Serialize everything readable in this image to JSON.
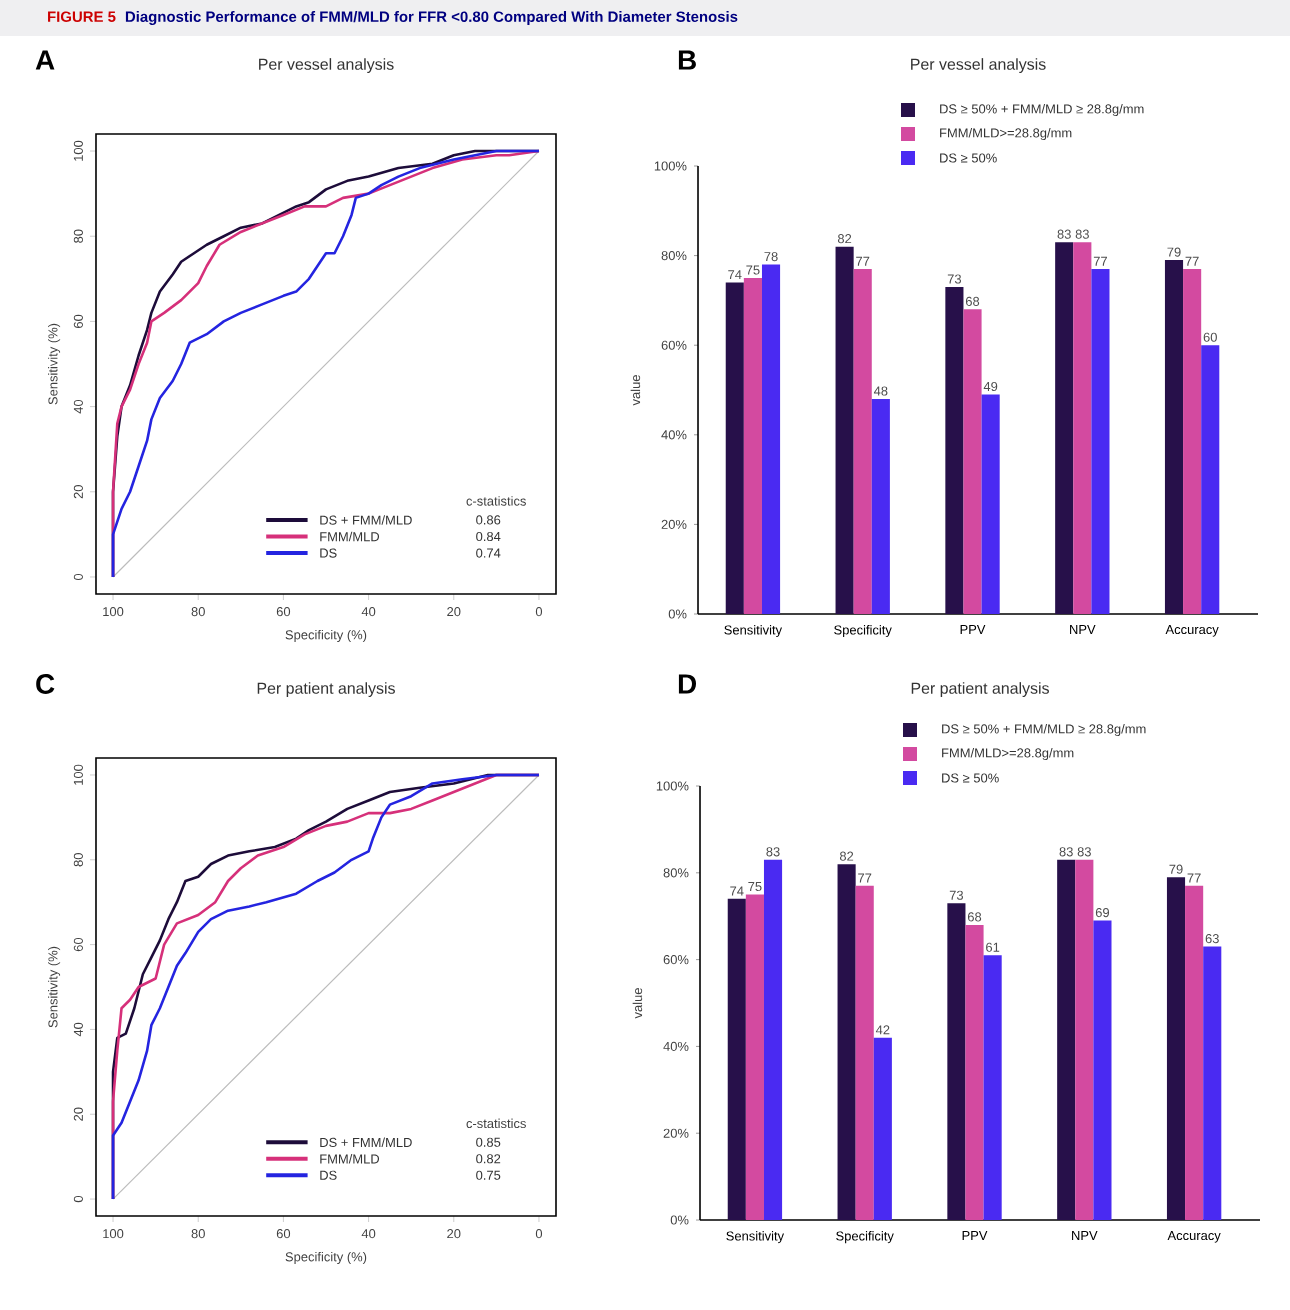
{
  "chart_data": [
    {
      "type": "line",
      "title": "Per vessel analysis",
      "xlabel": "Specificity (%)",
      "ylabel": "Sensitivity (%)",
      "legend_title": "c-statistics",
      "annotations": [
        "FIGURE 5",
        "Diagnostic Performance of FMM/MLD for FFR <0.80 Compared With Diameter Stenosis",
        "A",
        "0.86",
        "0.84",
        "0.74"
      ],
      "xlim": [
        104,
        -4
      ],
      "ylim": [
        -4,
        104
      ],
      "xticks": [
        100,
        80,
        60,
        40,
        20,
        0
      ],
      "yticks": [
        0,
        20,
        40,
        60,
        80,
        100
      ],
      "legend": "bottom right",
      "marker": "none",
      "line_style": "solid",
      "series": [
        {
          "type": "line",
          "color": "#bcbcbc",
          "x": [
            100,
            0
          ],
          "values": [
            0,
            100
          ]
        },
        {
          "name": "DS + FMM/MLD",
          "color": "#1d0c3a",
          "x": [
            100,
            100,
            99,
            98,
            96,
            94,
            92,
            91,
            89,
            86,
            84,
            81,
            78,
            74,
            70,
            65,
            61,
            57,
            54,
            50,
            45,
            40,
            33,
            25,
            20,
            15,
            0
          ],
          "values": [
            0,
            20,
            33,
            40,
            45,
            52,
            58,
            62,
            67,
            71,
            74,
            76,
            78,
            80,
            82,
            83,
            85,
            87,
            88,
            91,
            93,
            94,
            96,
            97,
            99,
            100,
            100
          ]
        },
        {
          "name": "FMM/MLD",
          "color": "#d6307a",
          "x": [
            100,
            100,
            99,
            98,
            96,
            94,
            92,
            91,
            88,
            84,
            80,
            78,
            75,
            70,
            65,
            60,
            55,
            50,
            46,
            40,
            35,
            30,
            25,
            18,
            10,
            7,
            0
          ],
          "values": [
            0,
            20,
            36,
            40,
            44,
            50,
            55,
            60,
            62,
            65,
            69,
            73,
            78,
            81,
            83,
            85,
            87,
            87,
            89,
            90,
            92,
            94,
            96,
            98,
            99,
            99,
            100
          ]
        },
        {
          "name": "DS",
          "color": "#2424e0",
          "x": [
            100,
            100,
            98,
            96,
            94,
            92,
            91,
            89,
            86,
            84,
            82,
            78,
            74,
            70,
            65,
            60,
            57,
            54,
            52,
            50,
            48,
            46,
            44,
            43,
            40,
            37,
            33,
            28,
            24,
            20,
            15,
            10,
            0
          ],
          "values": [
            0,
            10,
            16,
            20,
            26,
            32,
            37,
            42,
            46,
            50,
            55,
            57,
            60,
            62,
            64,
            66,
            67,
            70,
            73,
            76,
            76,
            80,
            85,
            89,
            90,
            92,
            94,
            96,
            97,
            98,
            99,
            100,
            100
          ]
        }
      ]
    },
    {
      "type": "bar",
      "title": "Per vessel analysis",
      "ylabel": "value",
      "annotations": [
        "B"
      ],
      "categories": [
        "Sensitivity",
        "Specificity",
        "PPV",
        "NPV",
        "Accuracy"
      ],
      "ylim": [
        0,
        100
      ],
      "yticks": [
        {
          "value": 0,
          "label": "0%"
        },
        {
          "value": 20,
          "label": "20%"
        },
        {
          "value": 40,
          "label": "40%"
        },
        {
          "value": 60,
          "label": "60%"
        },
        {
          "value": 80,
          "label": "80%"
        },
        {
          "value": 100,
          "label": "100%"
        }
      ],
      "legend": "top",
      "data_labels": true,
      "series": [
        {
          "name": "DS ≥ 50% + FMM/MLD ≥ 28.8g/mm",
          "color": "#27104a",
          "values": [
            74,
            82,
            73,
            83,
            79
          ]
        },
        {
          "name": "FMM/MLD>=28.8g/mm",
          "color": "#d34aa0",
          "values": [
            75,
            77,
            68,
            83,
            77
          ]
        },
        {
          "name": "DS ≥ 50%",
          "color": "#4a2af2",
          "values": [
            78,
            48,
            49,
            77,
            60
          ]
        }
      ]
    },
    {
      "type": "line",
      "title": "Per patient analysis",
      "xlabel": "Specificity (%)",
      "ylabel": "Sensitivity (%)",
      "legend_title": "c-statistics",
      "annotations": [
        "C",
        "0.85",
        "0.82",
        "0.75"
      ],
      "xlim": [
        104,
        -4
      ],
      "ylim": [
        -4,
        104
      ],
      "xticks": [
        100,
        80,
        60,
        40,
        20,
        0
      ],
      "yticks": [
        0,
        20,
        40,
        60,
        80,
        100
      ],
      "legend": "bottom right",
      "marker": "none",
      "line_style": "solid",
      "series": [
        {
          "type": "line",
          "color": "#bcbcbc",
          "x": [
            100,
            0
          ],
          "values": [
            0,
            100
          ]
        },
        {
          "name": "DS + FMM/MLD",
          "color": "#1d0c3a",
          "x": [
            100,
            100,
            99,
            97,
            95,
            93,
            91,
            89,
            87,
            85,
            83,
            80,
            77,
            73,
            68,
            62,
            57,
            54,
            50,
            45,
            40,
            35,
            28,
            20,
            12,
            0
          ],
          "values": [
            0,
            30,
            38,
            39,
            45,
            53,
            57,
            61,
            66,
            70,
            75,
            76,
            79,
            81,
            82,
            83,
            85,
            87,
            89,
            92,
            94,
            96,
            97,
            98,
            100,
            100
          ]
        },
        {
          "name": "FMM/MLD",
          "color": "#d6307a",
          "x": [
            100,
            100,
            99,
            98,
            96,
            94,
            90,
            88,
            85,
            80,
            76,
            73,
            70,
            66,
            60,
            55,
            50,
            45,
            40,
            35,
            30,
            25,
            20,
            15,
            10,
            0
          ],
          "values": [
            0,
            23,
            35,
            45,
            47,
            50,
            52,
            60,
            65,
            67,
            70,
            75,
            78,
            81,
            83,
            86,
            88,
            89,
            91,
            91,
            92,
            94,
            96,
            98,
            100,
            100
          ]
        },
        {
          "name": "DS",
          "color": "#2424e0",
          "x": [
            100,
            100,
            98,
            96,
            94,
            92,
            91,
            89,
            87,
            85,
            83,
            80,
            77,
            73,
            68,
            64,
            57,
            52,
            48,
            44,
            40,
            39,
            37,
            35,
            30,
            25,
            18,
            10,
            0
          ],
          "values": [
            0,
            15,
            18,
            23,
            28,
            35,
            41,
            45,
            50,
            55,
            58,
            63,
            66,
            68,
            69,
            70,
            72,
            75,
            77,
            80,
            82,
            85,
            90,
            93,
            95,
            98,
            99,
            100,
            100
          ]
        }
      ]
    },
    {
      "type": "bar",
      "title": "Per patient analysis",
      "ylabel": "value",
      "annotations": [
        "D"
      ],
      "categories": [
        "Sensitivity",
        "Specificity",
        "PPV",
        "NPV",
        "Accuracy"
      ],
      "ylim": [
        0,
        100
      ],
      "yticks": [
        {
          "value": 0,
          "label": "0%"
        },
        {
          "value": 20,
          "label": "20%"
        },
        {
          "value": 40,
          "label": "40%"
        },
        {
          "value": 60,
          "label": "60%"
        },
        {
          "value": 80,
          "label": "80%"
        },
        {
          "value": 100,
          "label": "100%"
        }
      ],
      "legend": "top",
      "data_labels": true,
      "series": [
        {
          "name": "DS ≥ 50% + FMM/MLD ≥ 28.8g/mm",
          "color": "#27104a",
          "values": [
            74,
            82,
            73,
            83,
            79
          ]
        },
        {
          "name": "FMM/MLD>=28.8g/mm",
          "color": "#d34aa0",
          "values": [
            75,
            77,
            68,
            83,
            77
          ]
        },
        {
          "name": "DS ≥ 50%",
          "color": "#4a2af2",
          "values": [
            83,
            42,
            61,
            69,
            63
          ]
        }
      ]
    }
  ]
}
